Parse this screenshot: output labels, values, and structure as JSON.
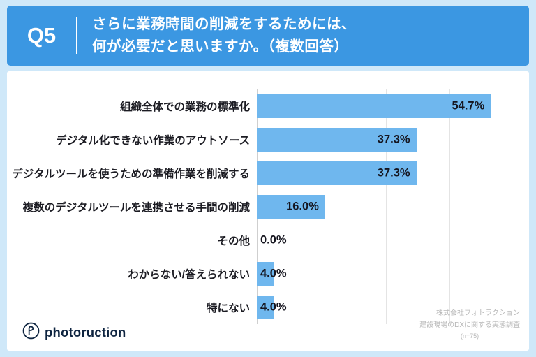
{
  "header": {
    "q_label": "Q5",
    "title_line1": "さらに業務時間の削減をするためには、",
    "title_line2": "何が必要だと思いますか。（複数回答）"
  },
  "chart_data": {
    "type": "bar",
    "orientation": "horizontal",
    "categories": [
      "組織全体での業務の標準化",
      "デジタル化できない作業のアウトソース",
      "デジタルツールを使うための準備作業を削減する",
      "複数のデジタルツールを連携させる手間の削減",
      "その他",
      "わからない/答えられない",
      "特にない"
    ],
    "values": [
      54.7,
      37.3,
      37.3,
      16.0,
      0.0,
      4.0,
      4.0
    ],
    "value_labels": [
      "54.7%",
      "37.3%",
      "37.3%",
      "16.0%",
      "0.0%",
      "4.0%",
      "4.0%"
    ],
    "xlim": [
      0,
      60
    ],
    "gridline_values": [
      15,
      30,
      45,
      60
    ],
    "grid": true,
    "legend": false,
    "bar_color": "#6fb7ee"
  },
  "footer": {
    "logo_text": "photoruction",
    "source_line1": "株式会社フォトラクション",
    "source_line2": "建設現場のDXに関する実態調査",
    "source_line3": "(n=75)"
  },
  "colors": {
    "background": "#cfe8f9",
    "header_bg": "#3b97e2",
    "bar": "#6fb7ee",
    "text_dark": "#1b1b22",
    "logo_navy": "#0e2440",
    "source_gray": "#b8b8b8"
  }
}
